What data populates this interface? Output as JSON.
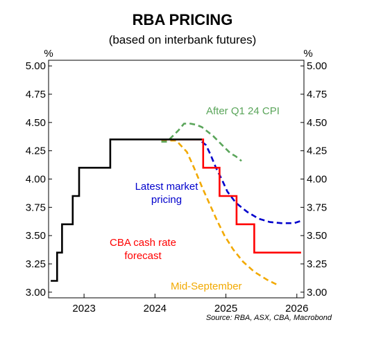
{
  "chart_data": {
    "type": "line",
    "title": "RBA PRICING",
    "subtitle": "(based on interbank futures)",
    "y_unit_left": "%",
    "y_unit_right": "%",
    "ylim": [
      2.95,
      5.05
    ],
    "yticks": [
      "5.00",
      "4.75",
      "4.50",
      "4.25",
      "4.00",
      "3.75",
      "3.50",
      "3.25",
      "3.00"
    ],
    "xlim": [
      2022.5,
      2026.1
    ],
    "xticks": [
      {
        "label": "2023",
        "x": 2023
      },
      {
        "label": "2024",
        "x": 2024
      },
      {
        "label": "2025",
        "x": 2025
      },
      {
        "label": "2026",
        "x": 2026
      }
    ],
    "grid": false,
    "series": [
      {
        "name": "",
        "color": "#000000",
        "style": "solid",
        "step": true,
        "points": [
          [
            2022.53,
            3.1
          ],
          [
            2022.62,
            3.1
          ],
          [
            2022.62,
            3.35
          ],
          [
            2022.69,
            3.35
          ],
          [
            2022.69,
            3.6
          ],
          [
            2022.84,
            3.6
          ],
          [
            2022.84,
            3.85
          ],
          [
            2022.93,
            3.85
          ],
          [
            2022.93,
            4.1
          ],
          [
            2023.37,
            4.1
          ],
          [
            2023.37,
            4.35
          ],
          [
            2024.66,
            4.35
          ]
        ]
      },
      {
        "name": "After Q1 24 CPI",
        "color": "#5aa55a",
        "style": "dashed",
        "points": [
          [
            2024.09,
            4.33
          ],
          [
            2024.17,
            4.33
          ],
          [
            2024.25,
            4.38
          ],
          [
            2024.33,
            4.43
          ],
          [
            2024.41,
            4.49
          ],
          [
            2024.5,
            4.49
          ],
          [
            2024.58,
            4.48
          ],
          [
            2024.66,
            4.46
          ],
          [
            2024.74,
            4.42
          ],
          [
            2024.82,
            4.38
          ],
          [
            2024.9,
            4.33
          ],
          [
            2024.98,
            4.28
          ],
          [
            2025.06,
            4.23
          ],
          [
            2025.14,
            4.2
          ],
          [
            2025.22,
            4.16
          ]
        ]
      },
      {
        "name": "Latest market pricing",
        "color": "#0000cc",
        "style": "dashed",
        "points": [
          [
            2024.66,
            4.33
          ],
          [
            2024.72,
            4.3
          ],
          [
            2024.78,
            4.22
          ],
          [
            2024.86,
            4.1
          ],
          [
            2024.94,
            4.0
          ],
          [
            2025.02,
            3.89
          ],
          [
            2025.14,
            3.79
          ],
          [
            2025.3,
            3.71
          ],
          [
            2025.46,
            3.65
          ],
          [
            2025.62,
            3.62
          ],
          [
            2025.78,
            3.61
          ],
          [
            2025.96,
            3.61
          ],
          [
            2026.06,
            3.63
          ]
        ]
      },
      {
        "name": "CBA cash rate forecast",
        "color": "#ff0000",
        "style": "solid",
        "step": true,
        "points": [
          [
            2024.09,
            4.35
          ],
          [
            2024.68,
            4.35
          ],
          [
            2024.68,
            4.1
          ],
          [
            2024.91,
            4.1
          ],
          [
            2024.91,
            3.85
          ],
          [
            2025.15,
            3.85
          ],
          [
            2025.15,
            3.6
          ],
          [
            2025.4,
            3.6
          ],
          [
            2025.4,
            3.35
          ],
          [
            2026.06,
            3.35
          ]
        ]
      },
      {
        "name": "Mid-September",
        "color": "#f2a900",
        "style": "dashed",
        "points": [
          [
            2024.09,
            4.34
          ],
          [
            2024.3,
            4.34
          ],
          [
            2024.45,
            4.24
          ],
          [
            2024.55,
            4.1
          ],
          [
            2024.67,
            3.92
          ],
          [
            2024.77,
            3.78
          ],
          [
            2024.87,
            3.64
          ],
          [
            2024.98,
            3.5
          ],
          [
            2025.1,
            3.38
          ],
          [
            2025.24,
            3.27
          ],
          [
            2025.4,
            3.18
          ],
          [
            2025.58,
            3.11
          ],
          [
            2025.74,
            3.06
          ]
        ]
      }
    ],
    "annotations": [
      {
        "text": "After Q1 24 CPI",
        "color": "#5aa55a"
      },
      {
        "text": "Latest market",
        "color": "#0000cc"
      },
      {
        "text": "pricing",
        "color": "#0000cc"
      },
      {
        "text": "CBA cash rate",
        "color": "#ff0000"
      },
      {
        "text": "forecast",
        "color": "#ff0000"
      },
      {
        "text": "Mid-September",
        "color": "#f2a900"
      }
    ],
    "source": "Source: RBA, ASX, CBA, Macrobond"
  }
}
